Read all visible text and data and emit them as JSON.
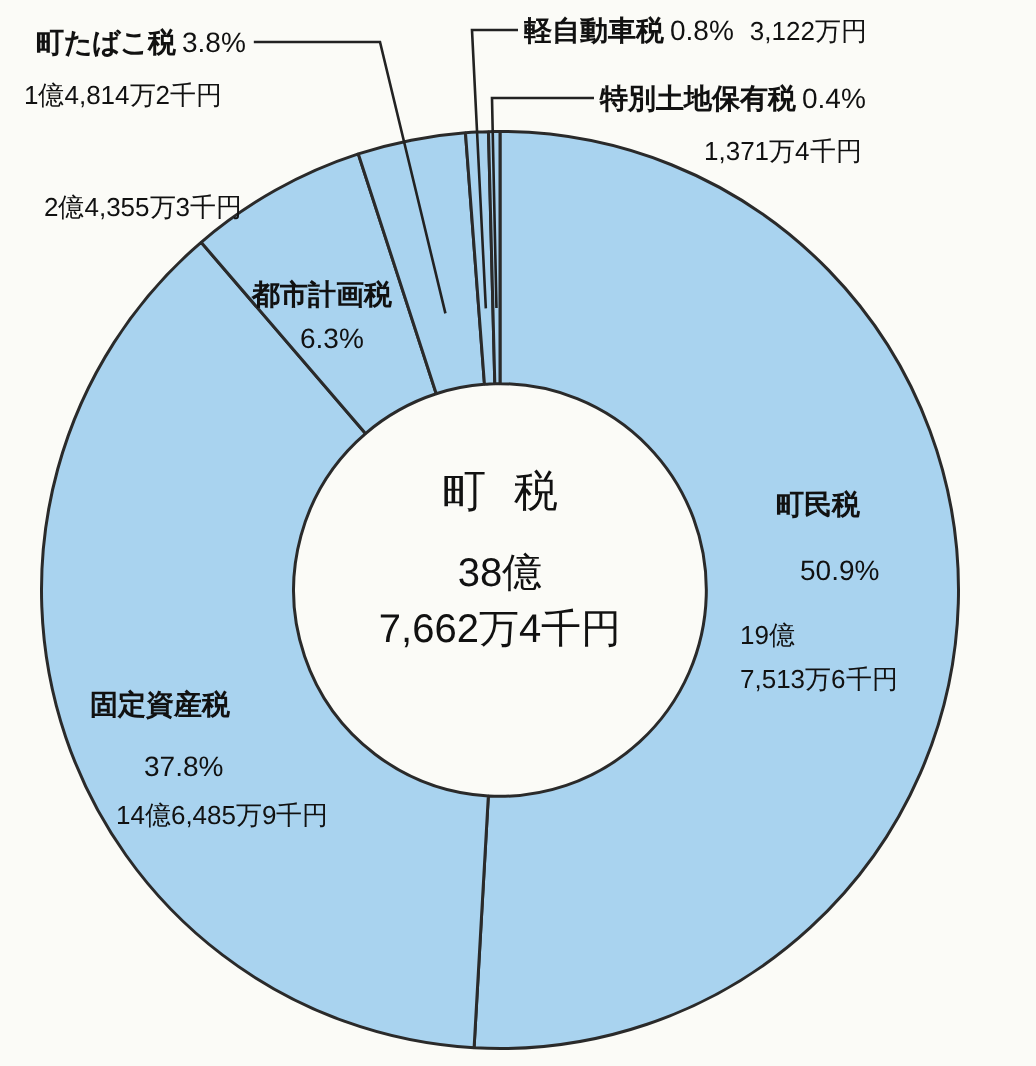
{
  "chart_data": {
    "type": "donut",
    "title": "町税",
    "categories": [
      "町民税",
      "固定資産税",
      "都市計画税",
      "町たばこ税",
      "軽自動車税",
      "特別土地保有税"
    ],
    "values": [
      50.9,
      37.8,
      6.3,
      3.8,
      0.8,
      0.4
    ],
    "colors": [
      "#a9d3ef",
      "#a9d3ef",
      "#a9d3ef",
      "#a9d3ef",
      "#a9d3ef",
      "#a9d3ef"
    ],
    "value_labels": [
      "50.9%",
      "37.8%",
      "6.3%",
      "3.8%",
      "0.8%",
      "0.4%"
    ],
    "annotations": [
      {
        "text": "19億\n7,513万6千円",
        "x": "町民税"
      },
      {
        "text": "14億6,485万9千円",
        "x": "固定資産税"
      },
      {
        "text": "2億4,355万3千円",
        "x": "都市計画税"
      },
      {
        "text": "1億4,814万2千円",
        "x": "町たばこ税"
      },
      {
        "text": "3,122万円",
        "x": "軽自動車税"
      },
      {
        "text": "1,371万4千円",
        "x": "特別土地保有税"
      },
      "38億\n7,662万4千円"
    ],
    "legend": false
  }
}
